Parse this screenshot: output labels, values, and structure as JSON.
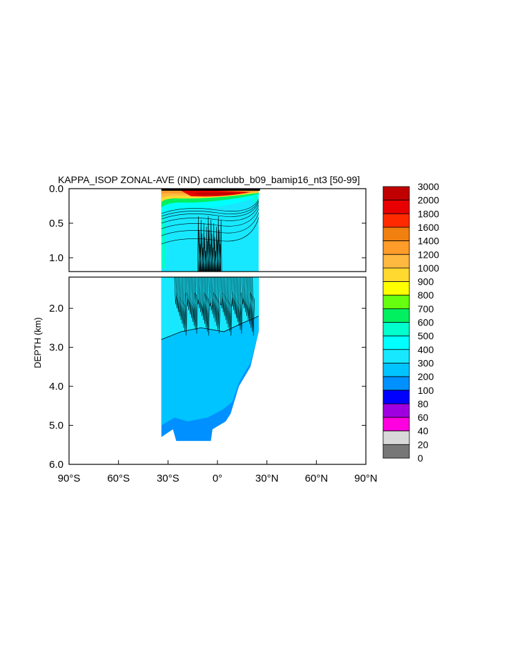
{
  "chart_data": {
    "type": "heatmap",
    "title": "KAPPA_ISOP ZONAL-AVE (IND) camclubb_b09_bamip16_nt3 [50-99]",
    "ylabel": "DEPTH (km)",
    "xlabel": "",
    "x_ticks": [
      "90°S",
      "60°S",
      "30°S",
      "0°",
      "30°N",
      "60°N",
      "90°N"
    ],
    "x_tick_values": [
      -90,
      -60,
      -30,
      0,
      30,
      60,
      90
    ],
    "xlim": [
      -90,
      90
    ],
    "upper_panel": {
      "ylim": [
        0,
        1.2
      ],
      "y_ticks": [
        "0.0",
        "0.5",
        "1.0"
      ],
      "y_tick_values": [
        0,
        0.5,
        1.0
      ]
    },
    "lower_panel": {
      "ylim": [
        1.2,
        6.0
      ],
      "y_ticks": [
        "2.0",
        "3.0",
        "4.0",
        "5.0",
        "6.0"
      ],
      "y_tick_values": [
        2,
        3,
        4,
        5,
        6
      ]
    },
    "data_extent": {
      "lat_min": -34,
      "lat_max": 25,
      "max_depth_km": 5.5
    },
    "colorbar": {
      "labels": [
        "3000",
        "2000",
        "1800",
        "1600",
        "1400",
        "1200",
        "1000",
        "900",
        "800",
        "700",
        "600",
        "500",
        "400",
        "300",
        "200",
        "100",
        "80",
        "60",
        "40",
        "20",
        "0"
      ],
      "colors": [
        "#c00000",
        "#e80000",
        "#ff2a00",
        "#f08010",
        "#ff9c2a",
        "#ffb840",
        "#ffd830",
        "#ffff00",
        "#66ff10",
        "#00f060",
        "#00ffcc",
        "#00ffff",
        "#18e8ff",
        "#00c4ff",
        "#0090ff",
        "#0000ff",
        "#a000e0",
        "#ff00e0",
        "#d8d8d8",
        "#777777"
      ]
    }
  }
}
